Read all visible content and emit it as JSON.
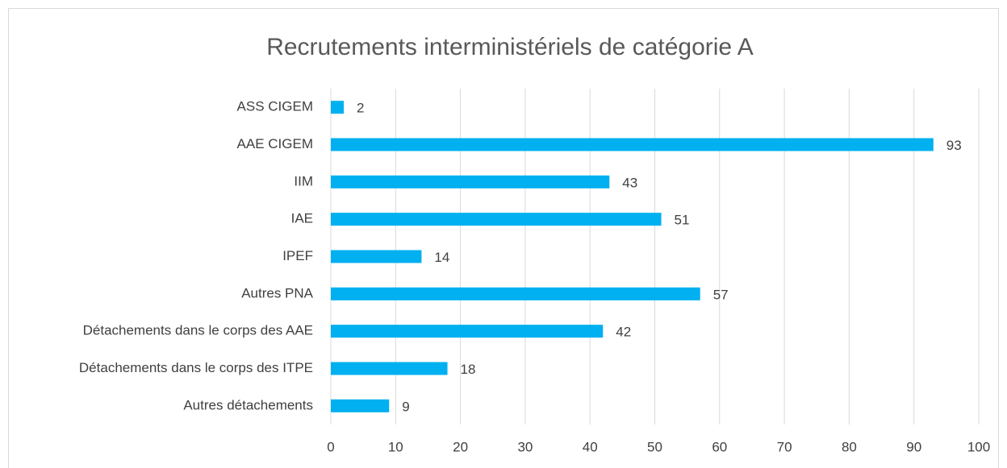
{
  "chart_data": {
    "type": "bar",
    "orientation": "horizontal",
    "title": "Recrutements interministériels de catégorie A",
    "categories": [
      "ASS CIGEM",
      "AAE CIGEM",
      "IIM",
      "IAE",
      "IPEF",
      "Autres PNA",
      "Détachements dans le corps des AAE",
      "Détachements dans le corps des ITPE",
      "Autres détachements"
    ],
    "values": [
      2,
      93,
      43,
      51,
      14,
      57,
      42,
      18,
      9
    ],
    "color": "#00b0f0",
    "xlim": [
      0,
      100
    ],
    "xticks": [
      0,
      10,
      20,
      30,
      40,
      50,
      60,
      70,
      80,
      90,
      100
    ],
    "grid": true
  }
}
